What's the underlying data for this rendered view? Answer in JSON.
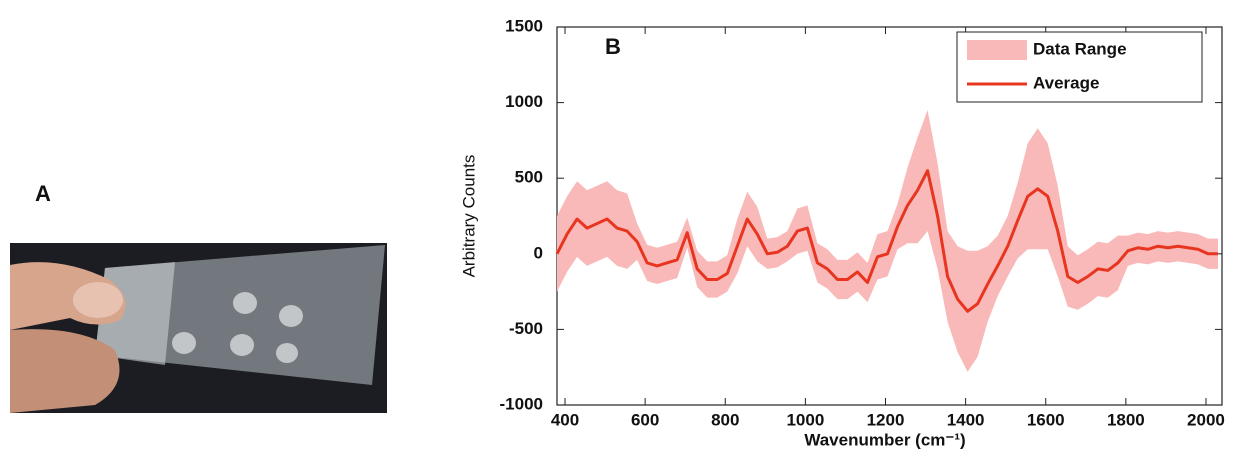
{
  "panel_labels": [
    "A",
    "B"
  ],
  "chart_data": {
    "type": "line",
    "xlabel": "Wavenumber (cm⁻¹)",
    "ylabel": "Arbitrary Counts",
    "x": [
      380,
      405,
      430,
      455,
      480,
      505,
      530,
      555,
      580,
      605,
      630,
      655,
      680,
      705,
      730,
      755,
      780,
      805,
      830,
      855,
      880,
      905,
      930,
      955,
      980,
      1005,
      1030,
      1055,
      1080,
      1105,
      1130,
      1155,
      1180,
      1205,
      1230,
      1255,
      1280,
      1305,
      1330,
      1355,
      1380,
      1405,
      1430,
      1455,
      1480,
      1505,
      1530,
      1555,
      1580,
      1605,
      1630,
      1655,
      1680,
      1705,
      1730,
      1755,
      1780,
      1805,
      1830,
      1855,
      1880,
      1905,
      1930,
      1955,
      1980,
      2005,
      2030
    ],
    "series": [
      {
        "name": "Data Range",
        "color": "#f9b9b9",
        "lower": [
          -250,
          -120,
          -20,
          -80,
          -50,
          -20,
          -80,
          -100,
          -40,
          -180,
          -200,
          -180,
          -160,
          40,
          -220,
          -290,
          -290,
          -250,
          -130,
          50,
          -50,
          -100,
          -90,
          -50,
          0,
          20,
          -190,
          -230,
          -300,
          -300,
          -250,
          -320,
          -170,
          -150,
          30,
          70,
          70,
          150,
          -100,
          -450,
          -650,
          -780,
          -680,
          -450,
          -280,
          -150,
          -30,
          30,
          30,
          30,
          -150,
          -350,
          -370,
          -330,
          -280,
          -290,
          -240,
          -80,
          -60,
          -70,
          -50,
          -60,
          -50,
          -60,
          -70,
          -100,
          -100
        ],
        "upper": [
          250,
          380,
          480,
          420,
          450,
          480,
          420,
          400,
          200,
          60,
          40,
          60,
          80,
          240,
          20,
          -50,
          -50,
          -10,
          230,
          410,
          310,
          100,
          110,
          150,
          300,
          320,
          70,
          30,
          -40,
          -40,
          10,
          -60,
          130,
          150,
          330,
          570,
          770,
          950,
          600,
          150,
          50,
          20,
          20,
          50,
          120,
          250,
          470,
          730,
          830,
          730,
          450,
          50,
          -10,
          30,
          80,
          70,
          120,
          120,
          140,
          130,
          150,
          140,
          150,
          140,
          130,
          100,
          100
        ]
      },
      {
        "name": "Average",
        "color": "#e8351f",
        "values": [
          0,
          130,
          230,
          170,
          200,
          230,
          170,
          150,
          80,
          -60,
          -80,
          -60,
          -40,
          140,
          -100,
          -170,
          -170,
          -130,
          50,
          230,
          130,
          0,
          10,
          50,
          150,
          170,
          -60,
          -100,
          -170,
          -170,
          -120,
          -190,
          -20,
          0,
          180,
          320,
          420,
          550,
          250,
          -150,
          -300,
          -380,
          -330,
          -200,
          -80,
          50,
          220,
          380,
          430,
          380,
          150,
          -150,
          -190,
          -150,
          -100,
          -110,
          -60,
          20,
          40,
          30,
          50,
          40,
          50,
          40,
          30,
          0,
          0
        ]
      }
    ],
    "xlim": [
      380,
      2040
    ],
    "ylim": [
      -1000,
      1500
    ],
    "xticks": [
      400,
      600,
      800,
      1000,
      1200,
      1400,
      1600,
      1800,
      2000
    ],
    "yticks": [
      -1000,
      -500,
      0,
      500,
      1000,
      1500
    ],
    "legend": "upper right"
  }
}
